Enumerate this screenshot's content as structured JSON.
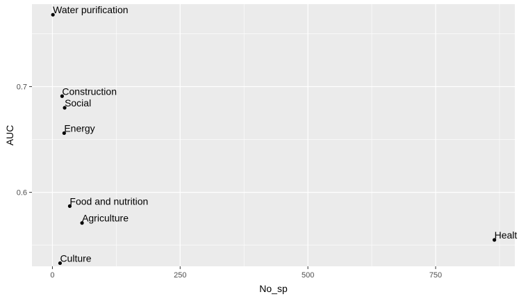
{
  "chart_data": {
    "type": "scatter",
    "xlabel": "No_sp",
    "ylabel": "AUC",
    "xlim": [
      -40,
      905
    ],
    "ylim": [
      0.53,
      0.778
    ],
    "x_ticks": [
      0,
      250,
      500,
      750
    ],
    "y_ticks": [
      0.6,
      0.7
    ],
    "x_tick_labels": [
      "0",
      "250",
      "500",
      "750"
    ],
    "y_tick_labels": [
      "0.6",
      "0.7"
    ],
    "grid": true,
    "background": "#ebebeb",
    "grid_color": "#ffffff",
    "point_color": "#000000",
    "points": [
      {
        "label": "Water purification",
        "x": 1,
        "y": 0.768
      },
      {
        "label": "Construction",
        "x": 19,
        "y": 0.691
      },
      {
        "label": "Social",
        "x": 24,
        "y": 0.68
      },
      {
        "label": "Energy",
        "x": 23,
        "y": 0.656
      },
      {
        "label": "Food and nutrition",
        "x": 34,
        "y": 0.587
      },
      {
        "label": "Agriculture",
        "x": 58,
        "y": 0.571
      },
      {
        "label": "Culture",
        "x": 15,
        "y": 0.533
      },
      {
        "label": "Healt",
        "x": 865,
        "y": 0.555
      }
    ]
  }
}
